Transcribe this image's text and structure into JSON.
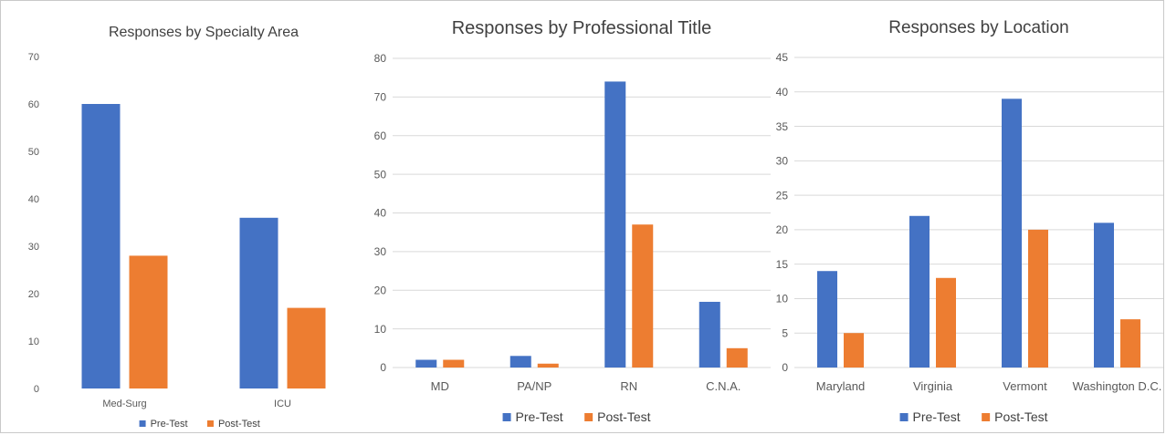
{
  "colors": {
    "pre": "#4472C4",
    "post": "#ED7D31"
  },
  "charts": [
    {
      "type": "bar",
      "title": "Responses by Specialty Area",
      "categories": [
        "Med-Surg",
        "ICU"
      ],
      "series": [
        {
          "name": "Pre-Test",
          "values": [
            60,
            36
          ]
        },
        {
          "name": "Post-Test",
          "values": [
            28,
            17
          ]
        }
      ],
      "ylim": [
        0,
        70
      ],
      "yticks": [
        "0",
        "10",
        "20",
        "30",
        "40",
        "50",
        "60",
        "70"
      ],
      "grid": false,
      "legend": "bottom"
    },
    {
      "type": "bar",
      "title": "Responses by Professional Title",
      "categories": [
        "MD",
        "PA/NP",
        "RN",
        "C.N.A."
      ],
      "series": [
        {
          "name": "Pre-Test",
          "values": [
            2,
            3,
            74,
            17
          ]
        },
        {
          "name": "Post-Test",
          "values": [
            2,
            1,
            37,
            5
          ]
        }
      ],
      "ylim": [
        0,
        80
      ],
      "yticks": [
        "0",
        "10",
        "20",
        "30",
        "40",
        "50",
        "60",
        "70",
        "80"
      ],
      "grid": true,
      "legend": "bottom"
    },
    {
      "type": "bar",
      "title": "Responses by Location",
      "categories": [
        "Maryland",
        "Virginia",
        "Vermont",
        "Washington D.C."
      ],
      "series": [
        {
          "name": "Pre-Test",
          "values": [
            14,
            22,
            39,
            21
          ]
        },
        {
          "name": "Post-Test",
          "values": [
            5,
            13,
            20,
            7
          ]
        }
      ],
      "ylim": [
        0,
        45
      ],
      "yticks": [
        "0",
        "5",
        "10",
        "15",
        "20",
        "25",
        "30",
        "35",
        "40",
        "45"
      ],
      "grid": true,
      "legend": "bottom"
    }
  ]
}
